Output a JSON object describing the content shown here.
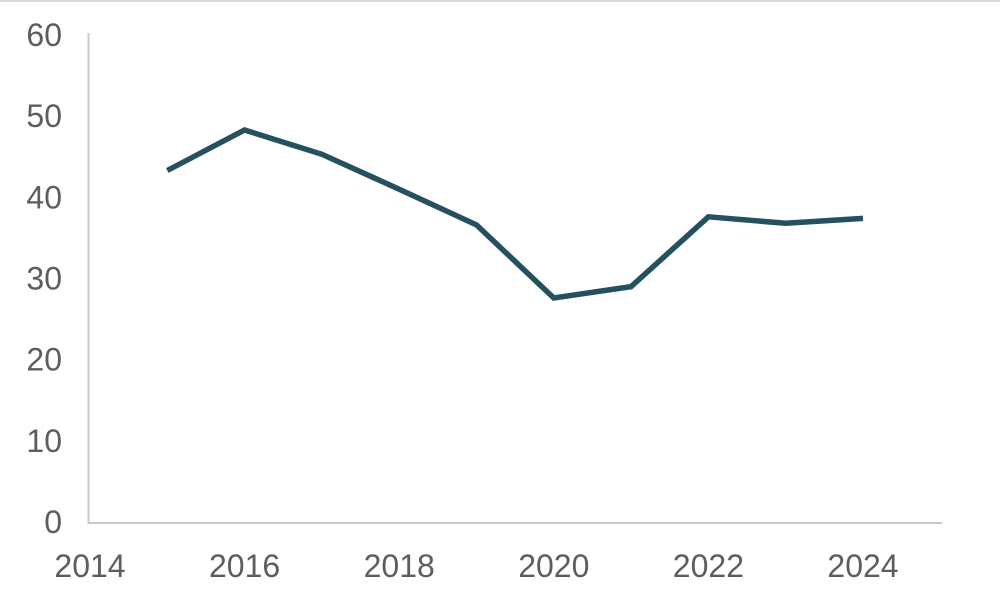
{
  "chart_data": {
    "type": "line",
    "title": "",
    "xlabel": "",
    "ylabel": "",
    "x": [
      2015,
      2016,
      2017,
      2018,
      2019,
      2020,
      2021,
      2022,
      2023,
      2024
    ],
    "values": [
      43.3,
      48.3,
      45.3,
      41.0,
      36.6,
      27.6,
      29.0,
      37.6,
      36.8,
      37.4
    ],
    "series_name": "",
    "xlim": [
      2014,
      2025
    ],
    "ylim": [
      0,
      60
    ],
    "x_ticks": [
      "2014",
      "2016",
      "2018",
      "2020",
      "2022",
      "2024"
    ],
    "x_tick_years": [
      2014,
      2016,
      2018,
      2020,
      2022,
      2024
    ],
    "y_ticks": [
      "0",
      "10",
      "20",
      "30",
      "40",
      "50",
      "60"
    ],
    "y_tick_values": [
      0,
      10,
      20,
      30,
      40,
      50,
      60
    ],
    "grid": false,
    "legend": false,
    "line_color": "#24505f",
    "axis_color": "#c9cacb",
    "tick_label_color": "#5b5d60",
    "top_edge_color": "#d8d8d8",
    "background": "#ffffff"
  }
}
